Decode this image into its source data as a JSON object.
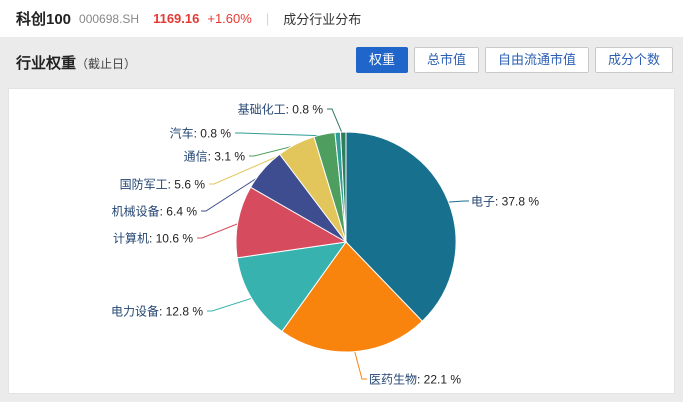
{
  "header": {
    "index_name": "科创100",
    "index_code": "000698.SH",
    "price": "1169.16",
    "change": "+1.60%",
    "divider": "|",
    "nav_label": "成分行业分布"
  },
  "section": {
    "title": "行业权重",
    "title_suffix": "（截止日）",
    "tabs": [
      {
        "label": "权重",
        "active": true
      },
      {
        "label": "总市值",
        "active": false
      },
      {
        "label": "自由流通市值",
        "active": false
      },
      {
        "label": "成分个数",
        "active": false
      }
    ]
  },
  "chart_data": {
    "type": "pie",
    "title": "行业权重",
    "unit": "%",
    "label_format": "{name}: {value} %",
    "legend": "none",
    "start_angle_clockwise_from_top_deg": 0,
    "categories": [
      "电子",
      "医药生物",
      "电力设备",
      "计算机",
      "机械设备",
      "国防军工",
      "通信",
      "汽车",
      "基础化工"
    ],
    "values": [
      37.8,
      22.1,
      12.8,
      10.6,
      6.4,
      5.6,
      3.1,
      0.8,
      0.8
    ],
    "colors": [
      "#16708e",
      "#f8830d",
      "#38b2ae",
      "#d64b5d",
      "#3d4d8f",
      "#e3c65b",
      "#4e9e5f",
      "#2e9e96",
      "#2e7d5b"
    ]
  }
}
